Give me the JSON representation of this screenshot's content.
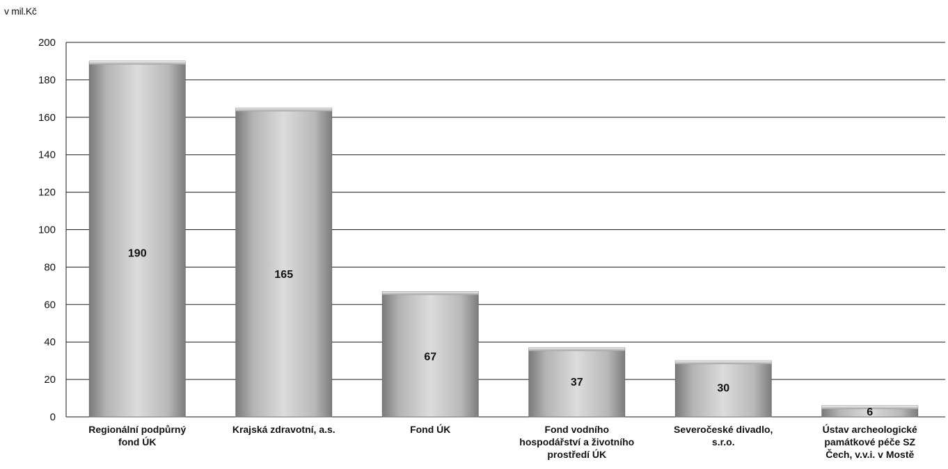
{
  "chart_data": {
    "type": "bar",
    "unit_label": "v mil.Kč",
    "categories": [
      [
        "Regionální podpůrný",
        "fond ÚK"
      ],
      [
        "Krajská zdravotní, a.s."
      ],
      [
        "Fond ÚK"
      ],
      [
        "Fond vodního",
        "hospodářství a životního",
        "prostředí ÚK"
      ],
      [
        "Severočeské divadlo,",
        "s.r.o."
      ],
      [
        "Ústav archeologické",
        "památkové péče SZ",
        "Čech, v.v.i. v Mostě"
      ]
    ],
    "values": [
      190,
      165,
      67,
      37,
      30,
      6
    ],
    "data_labels": [
      "190",
      "165",
      "67",
      "37",
      "30",
      "6"
    ],
    "ylim": [
      0,
      200
    ],
    "yticks": [
      0,
      20,
      40,
      60,
      80,
      100,
      120,
      140,
      160,
      180,
      200
    ],
    "grid": true,
    "legend": "none",
    "colors": {
      "bar_light": "#d6d6d6",
      "bar_mid": "#a9a9a9",
      "bar_dark": "#6f6f6f",
      "gridline": "#1a1a1a",
      "text": "#111111"
    }
  }
}
